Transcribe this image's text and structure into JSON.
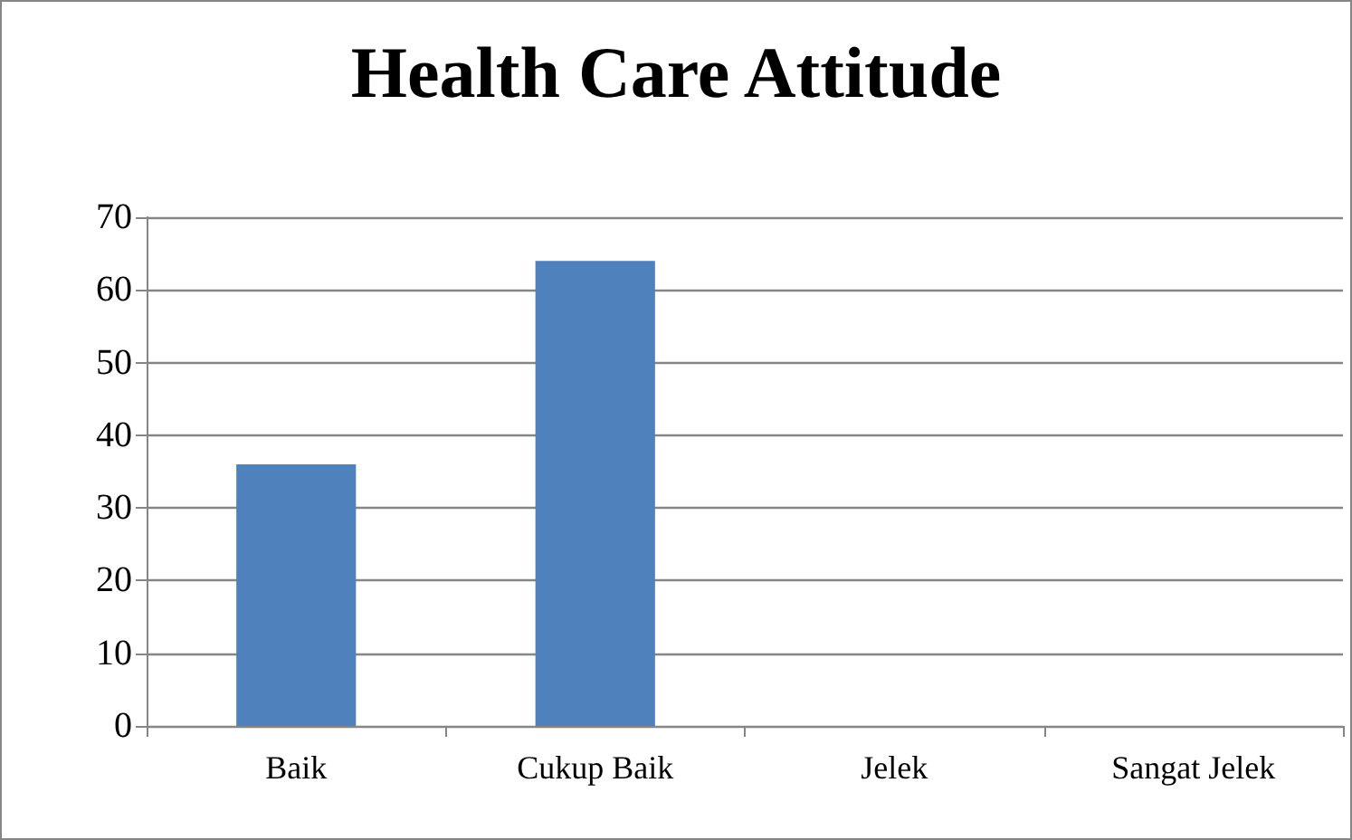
{
  "chart_data": {
    "type": "bar",
    "title": "Health Care Attitude",
    "categories": [
      "Baik",
      "Cukup Baik",
      "Jelek",
      "Sangat Jelek"
    ],
    "values": [
      36,
      64,
      0,
      0
    ],
    "color": "#4f81bd",
    "ylim": [
      0,
      70
    ],
    "yticks": [
      0,
      10,
      20,
      30,
      40,
      50,
      60,
      70
    ],
    "grid": "y"
  }
}
